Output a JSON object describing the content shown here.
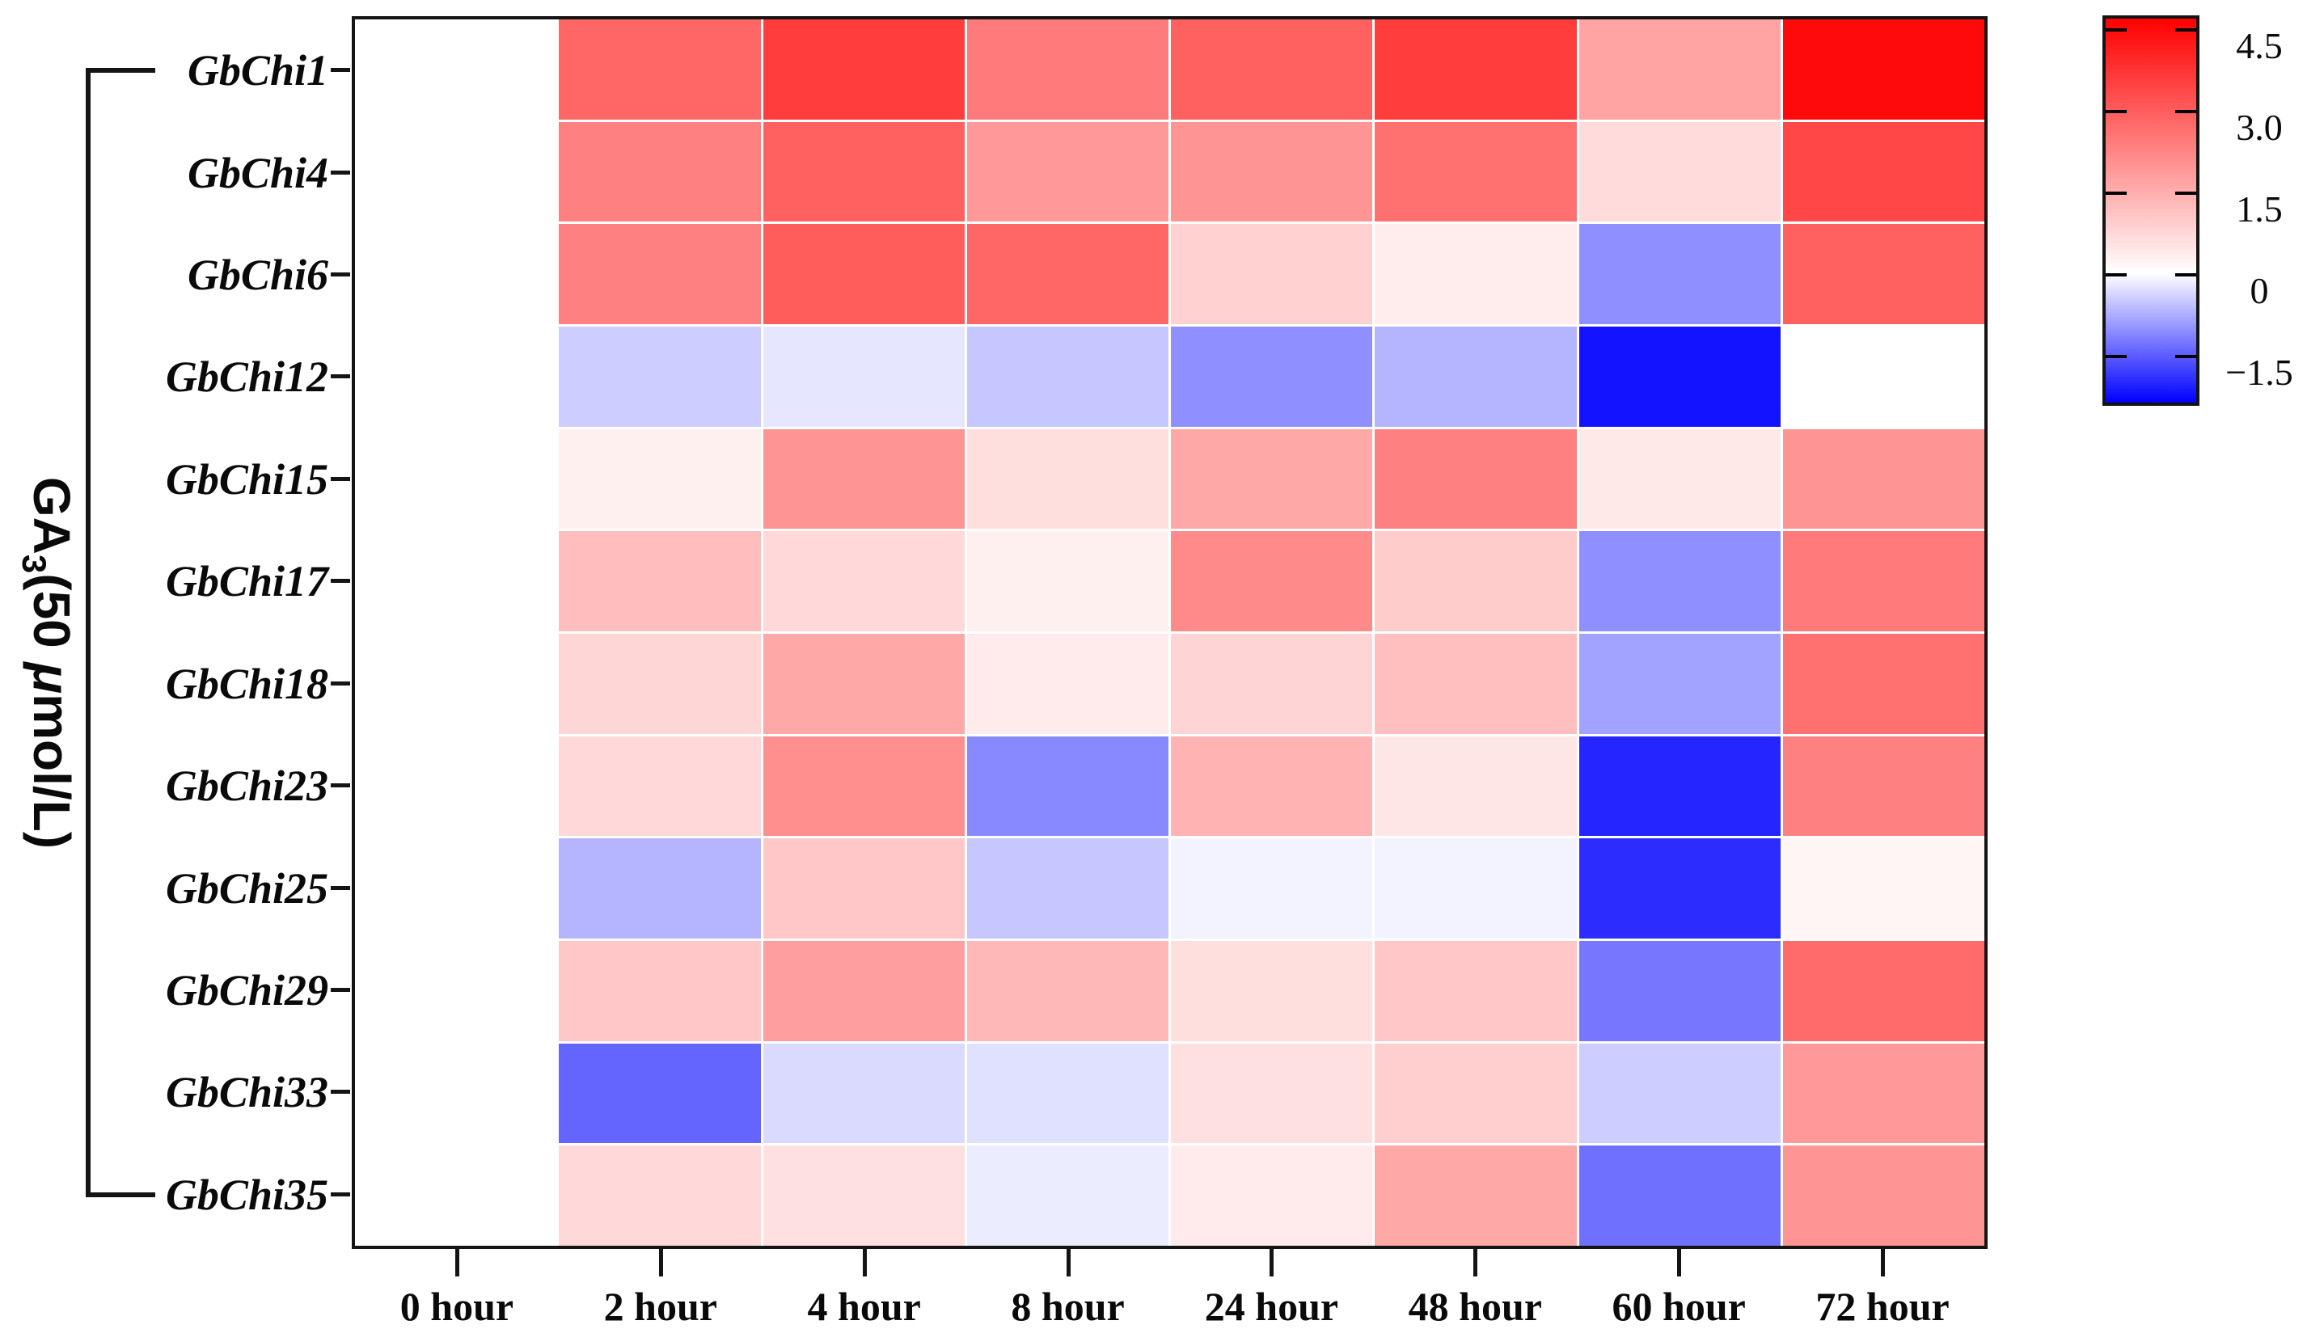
{
  "chart_data": {
    "type": "heatmap",
    "title": "",
    "ylabel_full": "GA3(50 μmol/L)",
    "ylabel_parts": {
      "prefix": "GA",
      "subscript": "3",
      "mid": "(50 ",
      "mu": "μ",
      "suffix": "mol/L)"
    },
    "x_categories": [
      "0 hour",
      "2 hour",
      "4 hour",
      "8 hour",
      "24 hour",
      "48 hour",
      "60 hour",
      "72 hour"
    ],
    "y_categories": [
      "GbChi1",
      "GbChi4",
      "GbChi6",
      "GbChi12",
      "GbChi15",
      "GbChi17",
      "GbChi18",
      "GbChi23",
      "GbChi25",
      "GbChi29",
      "GbChi33",
      "GbChi35"
    ],
    "values": [
      [
        0,
        3.0,
        3.8,
        2.6,
        3.1,
        3.8,
        1.8,
        4.8
      ],
      [
        0,
        2.5,
        3.1,
        2.0,
        2.1,
        2.8,
        0.7,
        3.6
      ],
      [
        0,
        2.5,
        3.2,
        3.0,
        0.9,
        0.35,
        -0.9,
        3.1
      ],
      [
        0,
        -0.4,
        -0.2,
        -0.45,
        -0.9,
        -0.6,
        -1.9,
        0.0
      ],
      [
        0,
        0.3,
        2.1,
        0.65,
        1.7,
        2.5,
        0.45,
        2.1
      ],
      [
        0,
        1.3,
        0.75,
        0.3,
        2.3,
        1.0,
        -0.9,
        2.6
      ],
      [
        0,
        0.8,
        1.7,
        0.4,
        0.85,
        1.25,
        -0.75,
        2.8
      ],
      [
        0,
        0.75,
        2.2,
        -0.95,
        1.5,
        0.5,
        -1.75,
        2.5
      ],
      [
        0,
        -0.6,
        1.1,
        -0.45,
        -0.1,
        -0.1,
        -1.7,
        0.2
      ],
      [
        0,
        1.1,
        1.9,
        1.4,
        0.65,
        1.1,
        -1.1,
        2.9
      ],
      [
        0,
        -1.25,
        -0.3,
        -0.25,
        0.6,
        0.95,
        -0.4,
        2.0
      ],
      [
        0,
        0.75,
        0.6,
        -0.15,
        0.4,
        1.7,
        -1.15,
        2.1
      ]
    ],
    "colorbar": {
      "position": "right",
      "tick_labels": [
        "4.5",
        "3.0",
        "1.5",
        "0",
        "−1.5"
      ],
      "tick_values": [
        4.5,
        3.0,
        1.5,
        0,
        -1.5
      ],
      "max_color": "#ff0000",
      "zero_color": "#ffffff",
      "min_color": "#0000ff",
      "scale_top": 5.0,
      "scale_bottom": -2.05
    },
    "grid_gap_color": "#ffffff",
    "frame_color": "#141414",
    "legend": "none",
    "axis_tick_color": "#141414"
  }
}
